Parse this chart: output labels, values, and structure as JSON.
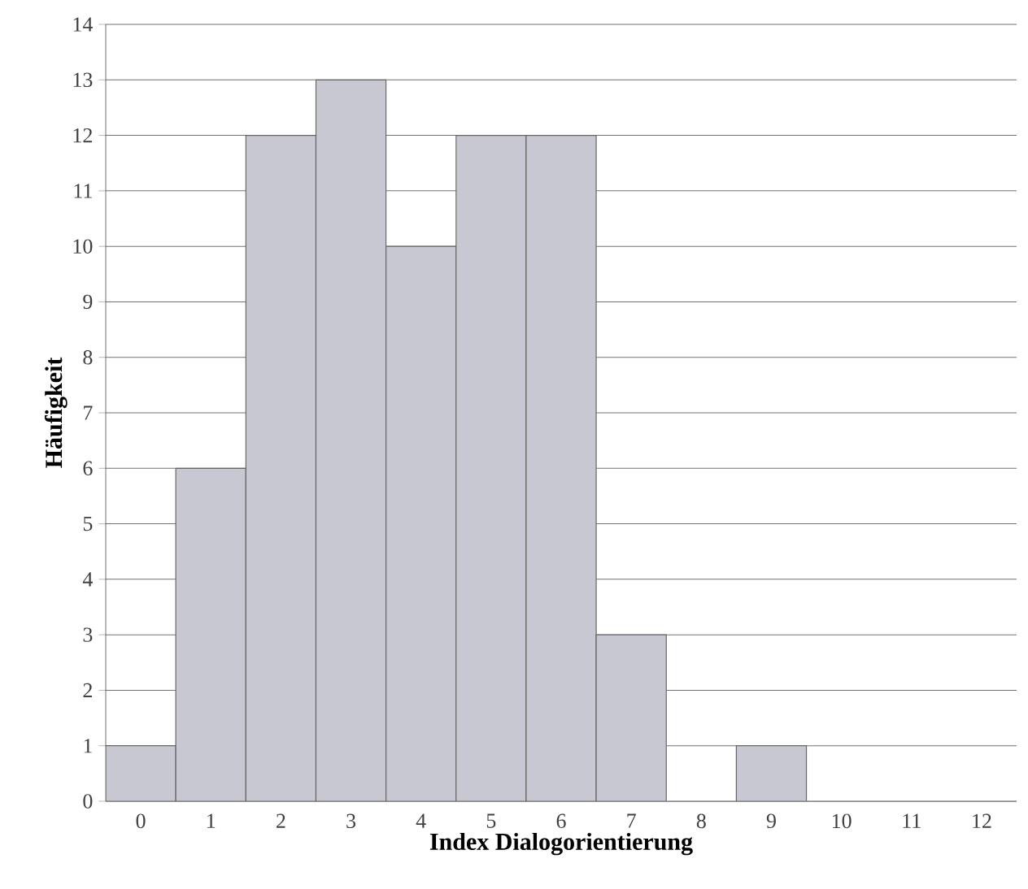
{
  "chart_data": {
    "type": "bar",
    "xlabel": "Index Dialogorientierung",
    "ylabel": "Häufigkeit",
    "categories": [
      "0",
      "1",
      "2",
      "3",
      "4",
      "5",
      "6",
      "7",
      "8",
      "9",
      "10",
      "11",
      "12"
    ],
    "values": [
      1,
      6,
      12,
      13,
      10,
      12,
      12,
      3,
      0,
      1,
      0,
      0,
      0
    ],
    "color": "#c8c8d2",
    "ylim": [
      0,
      14
    ],
    "yticks": [
      0,
      1,
      2,
      3,
      4,
      5,
      6,
      7,
      8,
      9,
      10,
      11,
      12,
      13,
      14
    ],
    "grid": "y"
  }
}
